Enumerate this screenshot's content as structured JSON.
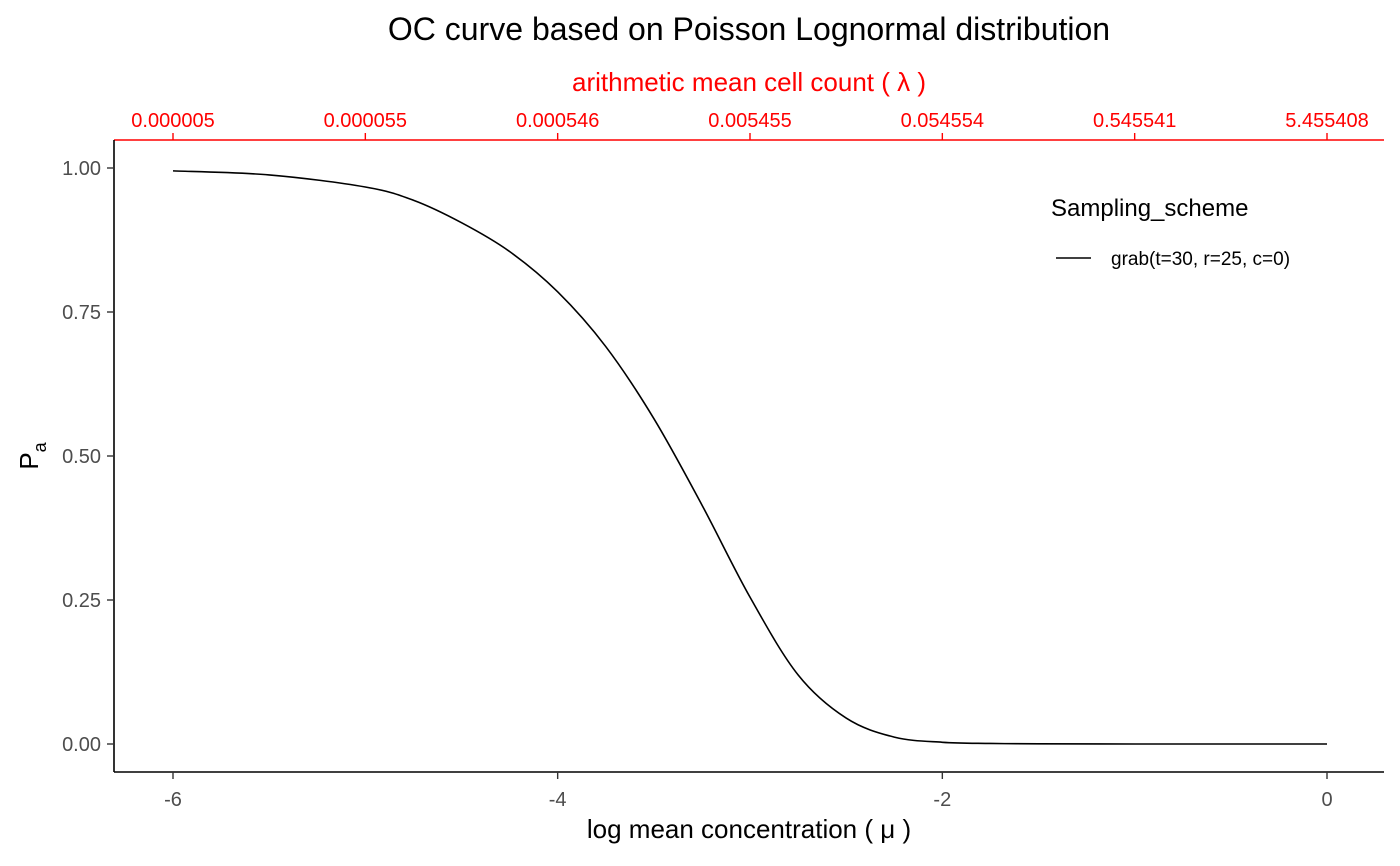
{
  "chart_data": {
    "type": "line",
    "title": "OC curve based on Poisson Lognormal distribution",
    "xlabel": "log mean concentration  ( μ )",
    "ylabel_main": "P",
    "ylabel_sub": "a",
    "secondary_xlabel": "arithmetic mean cell count ( λ )",
    "xlim": [
      -6,
      0
    ],
    "ylim": [
      0,
      1
    ],
    "x_ticks": [
      "-6",
      "-4",
      "-2",
      "0"
    ],
    "x_tick_values": [
      -6,
      -4,
      -2,
      0
    ],
    "y_ticks": [
      "0.00",
      "0.25",
      "0.50",
      "0.75",
      "1.00"
    ],
    "y_tick_values": [
      0,
      0.25,
      0.5,
      0.75,
      1.0
    ],
    "secondary_x_ticks": [
      "0.000005",
      "0.000055",
      "0.000546",
      "0.005455",
      "0.054554",
      "0.545541",
      "5.455408"
    ],
    "secondary_x_tick_values": [
      -6,
      -5,
      -4,
      -3,
      -2,
      -1,
      0
    ],
    "legend_title": "Sampling_scheme",
    "legend_position": "top-right",
    "grid": false,
    "axis_color": "#000000",
    "secondary_axis_color": "#ff0000",
    "series": [
      {
        "name": "grab(t=30, r=25, c=0)",
        "color": "#000000",
        "x": [
          -6,
          -5.5,
          -5,
          -4.75,
          -4.5,
          -4.25,
          -4,
          -3.75,
          -3.5,
          -3.25,
          -3,
          -2.75,
          -2.5,
          -2.25,
          -2,
          -1.75,
          -1.5,
          -1,
          -0.5,
          0
        ],
        "y": [
          0.995,
          0.988,
          0.967,
          0.944,
          0.905,
          0.855,
          0.785,
          0.69,
          0.565,
          0.415,
          0.255,
          0.12,
          0.045,
          0.012,
          0.003,
          0.001,
          0.0003,
          0.0,
          0.0,
          0.0
        ]
      }
    ]
  }
}
